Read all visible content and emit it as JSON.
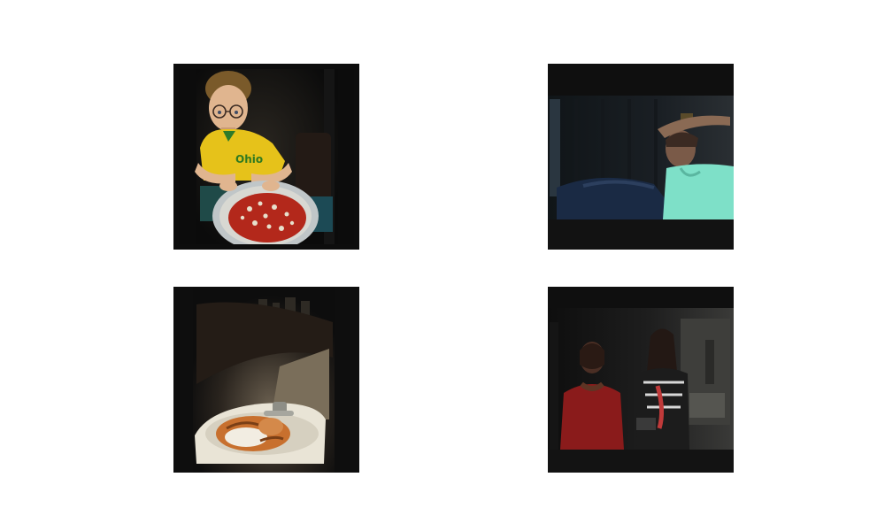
{
  "figure": {
    "layout": "2x2 image grid",
    "background": "#ffffff",
    "tile_background": "#0d0d0d",
    "images": [
      {
        "subject": "boy-with-pizza",
        "accent": "#e6c21a"
      },
      {
        "subject": "man-in-dark-room",
        "accent": "#7ee0c8"
      },
      {
        "subject": "cat-in-sink",
        "accent": "#c8702e"
      },
      {
        "subject": "two-people-in-doorway",
        "accent": "#8a1b1b"
      }
    ]
  }
}
